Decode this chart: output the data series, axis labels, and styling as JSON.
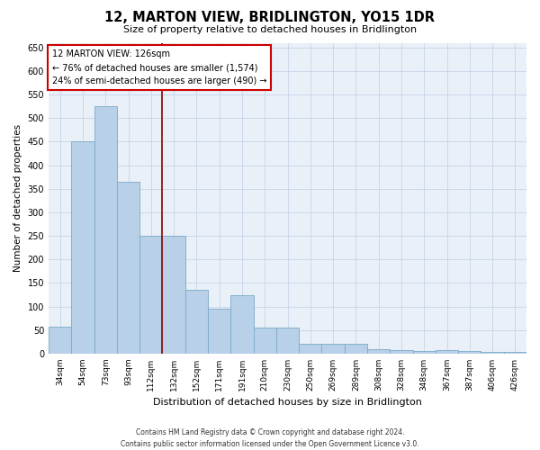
{
  "title": "12, MARTON VIEW, BRIDLINGTON, YO15 1DR",
  "subtitle": "Size of property relative to detached houses in Bridlington",
  "xlabel": "Distribution of detached houses by size in Bridlington",
  "ylabel": "Number of detached properties",
  "categories": [
    "34sqm",
    "54sqm",
    "73sqm",
    "93sqm",
    "112sqm",
    "132sqm",
    "152sqm",
    "171sqm",
    "191sqm",
    "210sqm",
    "230sqm",
    "250sqm",
    "269sqm",
    "289sqm",
    "308sqm",
    "328sqm",
    "348sqm",
    "367sqm",
    "387sqm",
    "406sqm",
    "426sqm"
  ],
  "values": [
    58,
    450,
    525,
    365,
    250,
    250,
    135,
    95,
    125,
    55,
    55,
    20,
    20,
    20,
    10,
    8,
    5,
    8,
    5,
    3,
    3
  ],
  "bar_color": "#b8d0e8",
  "bar_edge_color": "#7aaac8",
  "vline_x": 5,
  "vline_color": "#8b0000",
  "annotation_title": "12 MARTON VIEW: 126sqm",
  "annotation_line1": "← 76% of detached houses are smaller (1,574)",
  "annotation_line2": "24% of semi-detached houses are larger (490) →",
  "annotation_box_color": "#ffffff",
  "annotation_box_edgecolor": "#cc0000",
  "background_color": "#eaf0f8",
  "footer_line1": "Contains HM Land Registry data © Crown copyright and database right 2024.",
  "footer_line2": "Contains public sector information licensed under the Open Government Licence v3.0.",
  "ylim": [
    0,
    660
  ],
  "yticks": [
    0,
    50,
    100,
    150,
    200,
    250,
    300,
    350,
    400,
    450,
    500,
    550,
    600,
    650
  ]
}
